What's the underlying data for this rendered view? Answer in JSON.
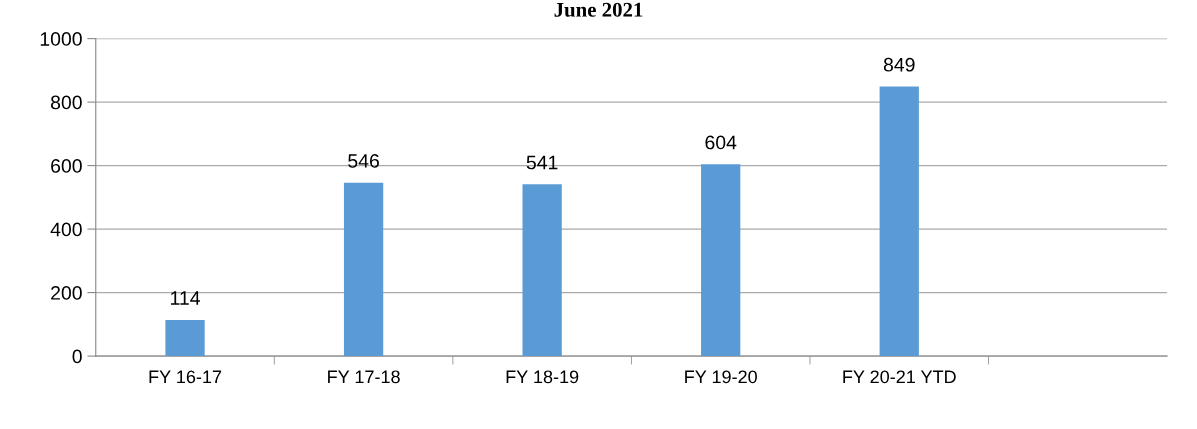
{
  "chart_data": {
    "type": "bar",
    "title": "June 2021",
    "categories": [
      "FY 16-17",
      "FY 17-18",
      "FY 18-19",
      "FY 19-20",
      "FY 20-21 YTD",
      null
    ],
    "values": [
      114,
      546,
      541,
      604,
      849,
      null
    ],
    "color": "#5b9bd5",
    "ylim": [
      0,
      1000
    ],
    "yticks": [
      0,
      200,
      400,
      600,
      800,
      1000
    ],
    "grid": "y",
    "data_labels": true
  }
}
